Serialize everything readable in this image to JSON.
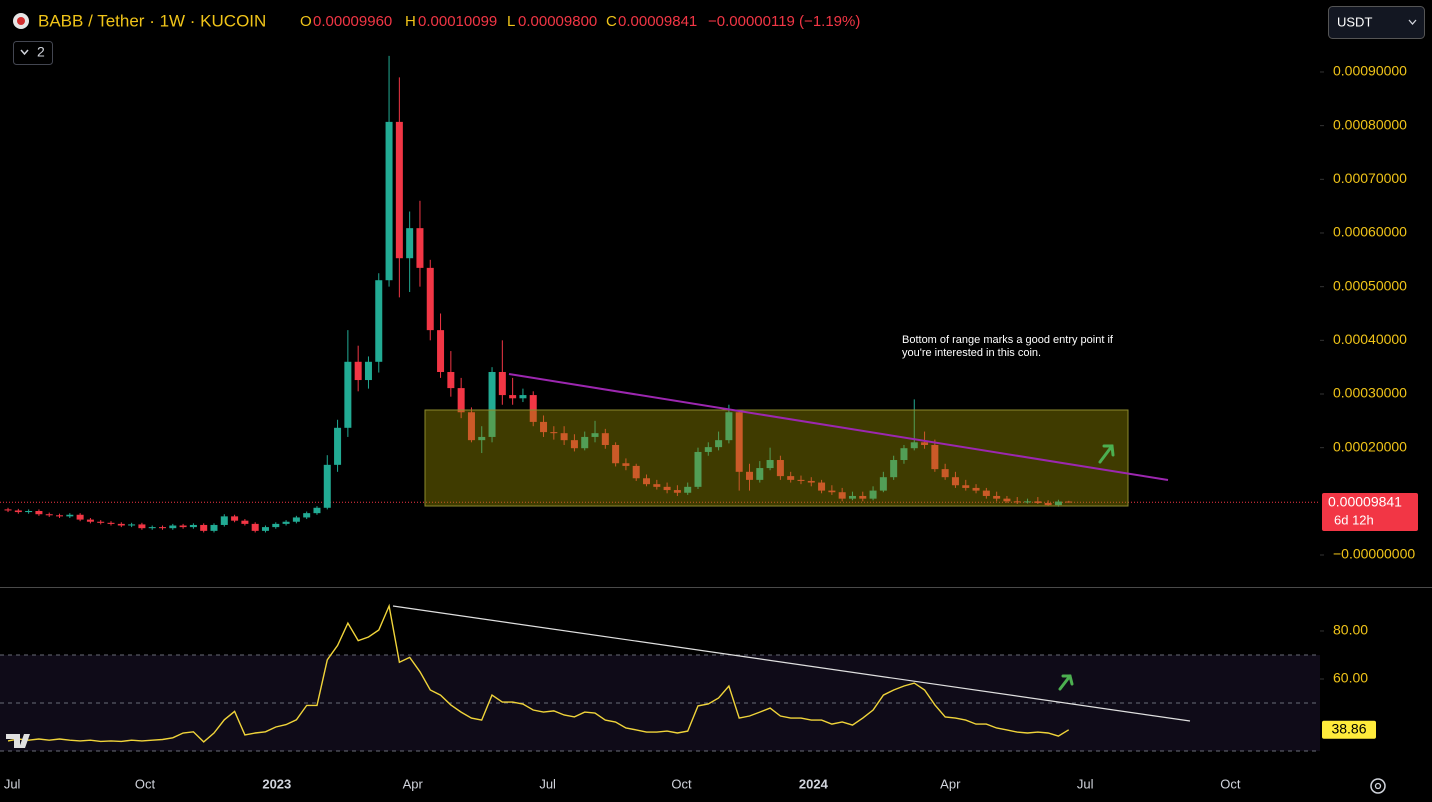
{
  "header": {
    "title": "BABB / Tether · 1W · KUCOIN",
    "ohlc": [
      {
        "key": "O",
        "value": "0.00009960"
      },
      {
        "key": "H",
        "value": "0.00010099"
      },
      {
        "key": "L",
        "value": "0.00009800"
      },
      {
        "key": "C",
        "value": "0.00009841"
      }
    ],
    "change": "−0.00000119 (−1.19%)",
    "indicators": "2",
    "currency": "USDT"
  },
  "annotation": [
    "Bottom of range marks a good entry point if",
    "you're interested in this coin."
  ],
  "last_price": {
    "label": "0.00009841",
    "countdown": "6d 12h"
  },
  "chart_data": [
    {
      "type": "candlestick",
      "up_color": "#22ab94",
      "down_color": "#f23645",
      "xlim": [
        -0.78,
        127.4
      ],
      "xticks": [
        {
          "value": 0.4,
          "label": "Jul"
        },
        {
          "value": 13.3,
          "label": "Oct"
        },
        {
          "value": 26.1,
          "label": "2023"
        },
        {
          "value": 39.3,
          "label": "Apr"
        },
        {
          "value": 52.4,
          "label": "Jul"
        },
        {
          "value": 65.4,
          "label": "Oct"
        },
        {
          "value": 78.2,
          "label": "2024"
        },
        {
          "value": 91.5,
          "label": "Apr"
        },
        {
          "value": 104.6,
          "label": "Jul"
        },
        {
          "value": 118.7,
          "label": "Oct"
        }
      ],
      "ylim": [
        -5.96e-05,
        0.0010341
      ],
      "yticks": [
        {
          "value": 0.0009,
          "label": "0.00090000"
        },
        {
          "value": 0.0008,
          "label": "0.00080000"
        },
        {
          "value": 0.0007,
          "label": "0.00070000"
        },
        {
          "value": 0.0006,
          "label": "0.00060000"
        },
        {
          "value": 0.0005,
          "label": "0.00050000"
        },
        {
          "value": 0.0004,
          "label": "0.00040000"
        },
        {
          "value": 0.0003,
          "label": "0.00030000"
        },
        {
          "value": 0.0002,
          "label": "0.00020000"
        },
        {
          "value": 0,
          "label": "−0.00000000"
        }
      ],
      "open": [
        8.5e-05,
        8.3e-05,
        8e-05,
        8.2e-05,
        7.6e-05,
        7.4e-05,
        7.2e-05,
        7.5e-05,
        6.6e-05,
        6.2e-05,
        6e-05,
        5.8e-05,
        5.5e-05,
        5.7e-05,
        5e-05,
        5.2e-05,
        5e-05,
        5.5e-05,
        5.2e-05,
        5.6e-05,
        4.5e-05,
        5.6e-05,
        7.2e-05,
        6.4e-05,
        5.8e-05,
        4.5e-05,
        5.2e-05,
        5.8e-05,
        6.2e-05,
        7e-05,
        7.8e-05,
        8.8e-05,
        0.000168,
        0.000237,
        0.00036,
        0.000326,
        0.00036,
        0.000512,
        0.000807,
        0.000553,
        0.000609,
        0.000535,
        0.000419,
        0.000341,
        0.000311,
        0.000266,
        0.000214,
        0.00022,
        0.000341,
        0.000298,
        0.000292,
        0.000298,
        0.000248,
        0.000229,
        0.000227,
        0.000214,
        0.000199,
        0.00022,
        0.000227,
        0.000205,
        0.000171,
        0.000166,
        0.000143,
        0.000132,
        0.000127,
        0.000121,
        0.000116,
        0.000127,
        0.000192,
        0.000201,
        0.000214,
        0.000266,
        0.000155,
        0.00014,
        0.000162,
        0.000177,
        0.000147,
        0.00014,
        0.000138,
        0.000135,
        0.00012,
        0.000117,
        0.000105,
        0.00011,
        0.000105,
        0.00012,
        0.000145,
        0.000177,
        0.000199,
        0.00021,
        0.000205,
        0.00016,
        0.000145,
        0.00013,
        0.000125,
        0.00012,
        0.00011,
        0.000105,
        0.0001,
        9.8e-05,
        0.0001,
        9.7e-05,
        9.3e-05,
        9.96e-05
      ],
      "high": [
        8.8e-05,
        8.6e-05,
        8.5e-05,
        8.5e-05,
        7.9e-05,
        7.7e-05,
        7.8e-05,
        7.8e-05,
        6.9e-05,
        6.5e-05,
        6.3e-05,
        6.1e-05,
        6e-05,
        6e-05,
        5.5e-05,
        5.5e-05,
        5.8e-05,
        5.8e-05,
        5.9e-05,
        5.9e-05,
        5.9e-05,
        7.6e-05,
        7.5e-05,
        6.7e-05,
        6.1e-05,
        5.5e-05,
        6.1e-05,
        6.5e-05,
        7.3e-05,
        8.1e-05,
        9.1e-05,
        0.000186,
        0.000252,
        0.000419,
        0.00039,
        0.00037,
        0.000525,
        0.00093,
        0.00089,
        0.00064,
        0.00066,
        0.00055,
        0.00045,
        0.00038,
        0.00033,
        0.000275,
        0.00024,
        0.00035,
        0.0004,
        0.00033,
        0.00031,
        0.000305,
        0.00026,
        0.00024,
        0.00024,
        0.000225,
        0.00023,
        0.00025,
        0.000235,
        0.00021,
        0.00018,
        0.00017,
        0.00015,
        0.00014,
        0.000135,
        0.00013,
        0.000135,
        0.0002,
        0.00021,
        0.00023,
        0.00028,
        0.00027,
        0.00017,
        0.000175,
        0.0002,
        0.000185,
        0.000155,
        0.000148,
        0.000145,
        0.00014,
        0.00013,
        0.000125,
        0.000118,
        0.000118,
        0.000128,
        0.000155,
        0.000185,
        0.000205,
        0.00029,
        0.00023,
        0.000215,
        0.00017,
        0.000155,
        0.00014,
        0.000132,
        0.000125,
        0.000118,
        0.00011,
        0.000108,
        0.000105,
        0.000108,
        0.000102,
        0.000103,
        0.00010099
      ],
      "low": [
        8e-05,
        7.7e-05,
        7.7e-05,
        7.3e-05,
        7.1e-05,
        6.9e-05,
        6.9e-05,
        6.3e-05,
        5.9e-05,
        5.7e-05,
        5.5e-05,
        5.2e-05,
        5.2e-05,
        4.7e-05,
        4.7e-05,
        4.7e-05,
        4.7e-05,
        4.9e-05,
        4.9e-05,
        4.2e-05,
        4.2e-05,
        5.3e-05,
        6.1e-05,
        5.5e-05,
        4.2e-05,
        4.2e-05,
        4.9e-05,
        5.5e-05,
        5.9e-05,
        6.7e-05,
        7.5e-05,
        8.5e-05,
        0.000155,
        0.00022,
        0.000305,
        0.00031,
        0.00034,
        0.0005,
        0.00048,
        0.00049,
        0.0005,
        0.0004,
        0.00033,
        0.000295,
        0.000255,
        0.00021,
        0.00019,
        0.00021,
        0.00028,
        0.00028,
        0.000285,
        0.00024,
        0.00022,
        0.000215,
        0.000205,
        0.000193,
        0.000195,
        0.00021,
        0.000198,
        0.000165,
        0.000158,
        0.000138,
        0.000128,
        0.000122,
        0.000115,
        0.00011,
        0.000112,
        0.000123,
        0.000185,
        0.000195,
        0.000208,
        0.00012,
        0.00012,
        0.000135,
        0.000158,
        0.00014,
        0.000135,
        0.000132,
        0.000128,
        0.000115,
        0.000112,
        0.0001,
        0.000102,
        0.0001,
        0.000102,
        0.000117,
        0.00014,
        0.00017,
        0.000195,
        0.000198,
        0.000155,
        0.00014,
        0.000125,
        0.00012,
        0.000115,
        0.000105,
        0.0001,
        9.7e-05,
        9.5e-05,
        9.6e-05,
        9.5e-05,
        9.1e-05,
        9e-05,
        9.8e-05
      ],
      "close": [
        8.3e-05,
        8e-05,
        8.2e-05,
        7.6e-05,
        7.4e-05,
        7.2e-05,
        7.5e-05,
        6.6e-05,
        6.2e-05,
        6e-05,
        5.8e-05,
        5.5e-05,
        5.7e-05,
        5e-05,
        5.2e-05,
        5e-05,
        5.5e-05,
        5.2e-05,
        5.6e-05,
        4.5e-05,
        5.6e-05,
        7.2e-05,
        6.4e-05,
        5.8e-05,
        4.5e-05,
        5.2e-05,
        5.8e-05,
        6.2e-05,
        7e-05,
        7.8e-05,
        8.8e-05,
        0.000168,
        0.000237,
        0.00036,
        0.000326,
        0.00036,
        0.000512,
        0.000807,
        0.000553,
        0.000609,
        0.000535,
        0.000419,
        0.000341,
        0.000311,
        0.000266,
        0.000214,
        0.00022,
        0.000341,
        0.000298,
        0.000292,
        0.000298,
        0.000248,
        0.000229,
        0.000227,
        0.000214,
        0.000199,
        0.00022,
        0.000227,
        0.000205,
        0.000171,
        0.000166,
        0.000143,
        0.000132,
        0.000127,
        0.000121,
        0.000116,
        0.000127,
        0.000192,
        0.000201,
        0.000214,
        0.000266,
        0.000155,
        0.00014,
        0.000162,
        0.000177,
        0.000147,
        0.00014,
        0.000138,
        0.000135,
        0.00012,
        0.000117,
        0.000105,
        0.00011,
        0.000105,
        0.00012,
        0.000145,
        0.000177,
        0.000199,
        0.00021,
        0.000205,
        0.00016,
        0.000145,
        0.00013,
        0.000125,
        0.00012,
        0.00011,
        0.000105,
        0.0001,
        9.8e-05,
        0.0001,
        9.7e-05,
        9.3e-05,
        9.96e-05,
        9.841e-05
      ]
    },
    {
      "type": "line",
      "color": "#f0d43a",
      "xlim": [
        -0.78,
        127.4
      ],
      "ylim": [
        22.1,
        97.9
      ],
      "yticks": [
        {
          "value": 80,
          "label": "80.00"
        },
        {
          "value": 60,
          "label": "60.00"
        }
      ],
      "levels": [
        70,
        50,
        30
      ],
      "values": [
        34.2,
        35,
        34.5,
        35,
        34.5,
        35,
        34.5,
        34.2,
        34.5,
        34,
        34.2,
        34,
        34.5,
        34.2,
        34.5,
        34.8,
        35.5,
        37.5,
        38,
        33.8,
        37.5,
        43,
        46.5,
        36.7,
        37.5,
        38,
        40,
        41,
        43,
        49,
        49,
        68,
        74,
        83.3,
        76,
        77.5,
        80.4,
        90.4,
        67,
        69,
        63,
        55.4,
        53.3,
        49.2,
        46.2,
        43.7,
        42.9,
        53.3,
        50.4,
        50.4,
        49.6,
        47.1,
        46.2,
        46.7,
        45,
        44.2,
        46.2,
        45.8,
        42.9,
        42.1,
        39.6,
        38.8,
        37.9,
        37.9,
        38.3,
        37.5,
        38.3,
        48.8,
        49.6,
        52.1,
        57.1,
        43.7,
        44.6,
        46.2,
        47.9,
        44.6,
        43.7,
        43.7,
        42.9,
        42.9,
        41.2,
        42.1,
        40.8,
        43.7,
        47.1,
        53.3,
        55.4,
        57.1,
        58.3,
        55.4,
        49.2,
        44.2,
        43.7,
        42.9,
        41.2,
        41.2,
        39.6,
        38.8,
        37.9,
        37.5,
        37.9,
        37.5,
        36.2,
        38.86
      ]
    }
  ]
}
